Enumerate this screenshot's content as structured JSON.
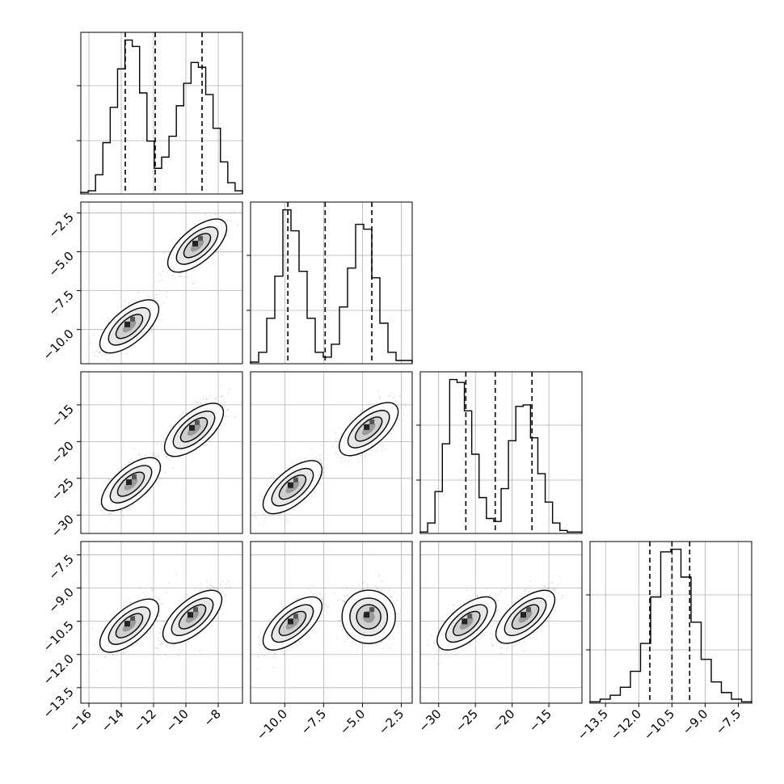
{
  "chart_data": {
    "type": "corner",
    "grid": true,
    "parameters": [
      {
        "index": 0,
        "range": [
          -16.5,
          -6.5
        ],
        "ticks": [
          "−16",
          "−14",
          "−12",
          "−10",
          "−8"
        ],
        "tick_values": [
          -16,
          -14,
          -12,
          -10,
          -8
        ],
        "quantiles": [
          -13.75,
          -11.9,
          -9.0
        ],
        "modes": [
          -13.5,
          -9.3
        ]
      },
      {
        "index": 1,
        "range": [
          -12.2,
          -1.8
        ],
        "ticks": [
          "−10.0",
          "−7.5",
          "−5.0",
          "−2.5"
        ],
        "tick_values": [
          -10.0,
          -7.5,
          -5.0,
          -2.5
        ],
        "quantiles": [
          -9.8,
          -7.4,
          -4.4
        ],
        "modes": [
          -9.5,
          -4.6
        ]
      },
      {
        "index": 2,
        "range": [
          -32.5,
          -10.5
        ],
        "ticks": [
          "−30",
          "−25",
          "−20",
          "−15"
        ],
        "tick_values": [
          -30,
          -25,
          -20,
          -15
        ],
        "quantiles": [
          -26.3,
          -22.3,
          -17.3
        ],
        "modes": [
          -26.0,
          -18.2
        ]
      },
      {
        "index": 3,
        "range": [
          -14.2,
          -6.9
        ],
        "ticks": [
          "−13.5",
          "−12.0",
          "−10.5",
          "−9.0",
          "−7.5"
        ],
        "tick_values": [
          -13.5,
          -12.0,
          -10.5,
          -9.0,
          -7.5
        ],
        "quantiles": [
          -11.5,
          -10.5,
          -9.7
        ],
        "modes": [
          -10.6,
          -10.3
        ]
      }
    ],
    "histograms": [
      {
        "param": 0,
        "bins": [
          -16.5,
          -6.5
        ],
        "counts": [
          0.1,
          0.2,
          1.2,
          3.2,
          5.4,
          7.8,
          9.6,
          9.2,
          6.3,
          3.3,
          1.6,
          2.3,
          3.6,
          5.5,
          6.9,
          8.2,
          7.9,
          6.2,
          4.1,
          2.0,
          0.7,
          0.2
        ]
      },
      {
        "param": 1,
        "bins": [
          -12.2,
          -1.8
        ],
        "counts": [
          0.1,
          0.7,
          2.8,
          5.4,
          9.5,
          8.2,
          5.7,
          2.8,
          0.7,
          0.4,
          1.2,
          3.5,
          5.9,
          8.6,
          8.3,
          5.3,
          2.5,
          0.7,
          0.2,
          0.2
        ]
      },
      {
        "param": 2,
        "bins": [
          -32.5,
          -10.5
        ],
        "counts": [
          0.1,
          0.7,
          2.8,
          6.0,
          10.3,
          10.1,
          8.2,
          5.3,
          2.4,
          1.0,
          0.8,
          3.0,
          6.2,
          8.5,
          8.6,
          6.4,
          4.0,
          2.1,
          0.7,
          0.2,
          0.1,
          0.1
        ]
      },
      {
        "param": 3,
        "bins": [
          -14.2,
          -6.9
        ],
        "counts": [
          0.1,
          0.3,
          0.6,
          1.2,
          2.4,
          4.5,
          8.0,
          11.4,
          11.6,
          9.5,
          6.1,
          3.3,
          1.6,
          0.8,
          0.3,
          0.1
        ]
      }
    ],
    "pairs": [
      {
        "x": 0,
        "y": 1,
        "modes": [
          {
            "cx": -13.5,
            "cy": -9.8
          },
          {
            "cx": -9.3,
            "cy": -4.6
          }
        ]
      },
      {
        "x": 0,
        "y": 2,
        "modes": [
          {
            "cx": -13.4,
            "cy": -25.8
          },
          {
            "cx": -9.5,
            "cy": -18.4
          }
        ]
      },
      {
        "x": 1,
        "y": 2,
        "modes": [
          {
            "cx": -9.5,
            "cy": -26.2
          },
          {
            "cx": -4.6,
            "cy": -18.3
          }
        ]
      },
      {
        "x": 0,
        "y": 3,
        "modes": [
          {
            "cx": -13.5,
            "cy": -10.7
          },
          {
            "cx": -9.6,
            "cy": -10.3
          }
        ]
      },
      {
        "x": 1,
        "y": 3,
        "modes": [
          {
            "cx": -9.5,
            "cy": -10.6
          },
          {
            "cx": -4.6,
            "cy": -10.3
          }
        ]
      },
      {
        "x": 2,
        "y": 3,
        "modes": [
          {
            "cx": -26.2,
            "cy": -10.6
          },
          {
            "cx": -18.2,
            "cy": -10.3
          }
        ]
      }
    ]
  }
}
